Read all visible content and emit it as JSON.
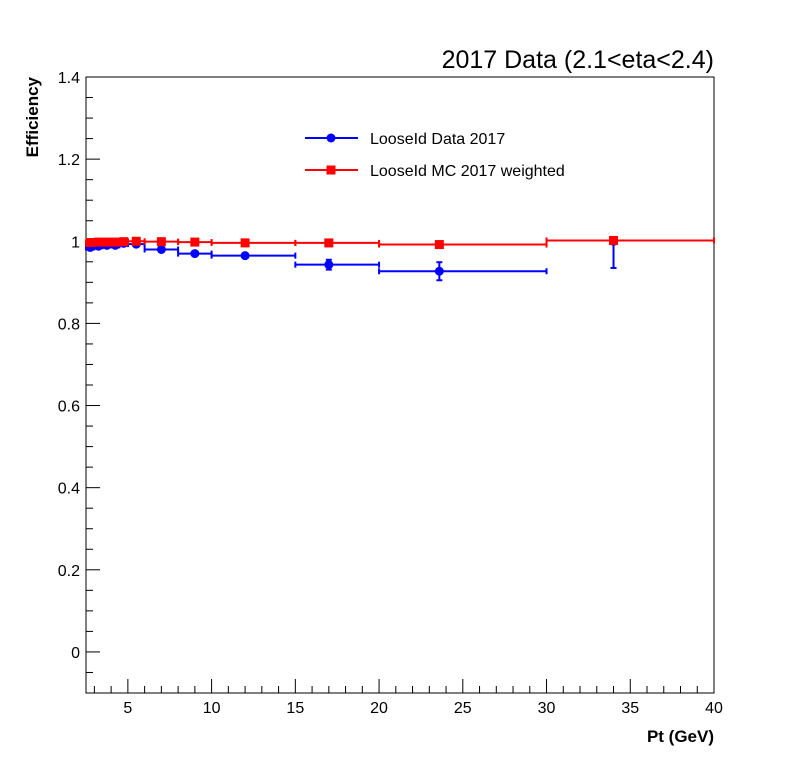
{
  "chart_data": {
    "type": "scatter",
    "title": "2017 Data (2.1<eta<2.4)",
    "xlabel": "Pt (GeV)",
    "ylabel": "Efficiency",
    "xlim": [
      2.5,
      40
    ],
    "ylim": [
      -0.1,
      1.4
    ],
    "xticks": [
      5,
      10,
      15,
      20,
      25,
      30,
      35,
      40
    ],
    "yticks": [
      0,
      0.2,
      0.4,
      0.6,
      0.8,
      1,
      1.2,
      1.4
    ],
    "ytick_labels": [
      "0",
      "0.2",
      "0.4",
      "0.6",
      "0.8",
      "1",
      "1.2",
      "1.4"
    ],
    "grid": false,
    "legend_position": "top-center",
    "series": [
      {
        "name": "LooseId Data 2017",
        "color": "#0000ff",
        "marker": "circle",
        "points": [
          {
            "x": 2.75,
            "y": 0.985,
            "xlo": 2.5,
            "xhi": 3.0,
            "err": 0.004
          },
          {
            "x": 3.25,
            "y": 0.988,
            "xlo": 3.0,
            "xhi": 3.5,
            "err": 0.003
          },
          {
            "x": 3.75,
            "y": 0.99,
            "xlo": 3.5,
            "xhi": 4.0,
            "err": 0.003
          },
          {
            "x": 4.25,
            "y": 0.99,
            "xlo": 4.0,
            "xhi": 4.5,
            "err": 0.003
          },
          {
            "x": 4.75,
            "y": 0.995,
            "xlo": 4.5,
            "xhi": 5.0,
            "err": 0.003
          },
          {
            "x": 5.5,
            "y": 0.993,
            "xlo": 5.0,
            "xhi": 6.0,
            "err": 0.003
          },
          {
            "x": 7.0,
            "y": 0.98,
            "xlo": 6.0,
            "xhi": 8.0,
            "err": 0.004
          },
          {
            "x": 9.0,
            "y": 0.97,
            "xlo": 8.0,
            "xhi": 10.0,
            "err": 0.005
          },
          {
            "x": 12.0,
            "y": 0.965,
            "xlo": 10.0,
            "xhi": 15.0,
            "err": 0.005
          },
          {
            "x": 17.0,
            "y": 0.943,
            "xlo": 15.0,
            "xhi": 20.0,
            "err": 0.012
          },
          {
            "x": 23.6,
            "y": 0.927,
            "xlo": 20.0,
            "xhi": 30.0,
            "err": 0.022
          },
          {
            "x": 34.0,
            "y": 1.0,
            "xlo": 34.0,
            "xhi": 34.0,
            "err": 0.0,
            "err_low": 0.065,
            "err_high": 0.0
          }
        ]
      },
      {
        "name": "LooseId MC 2017 weighted",
        "color": "#ff0000",
        "marker": "square",
        "points": [
          {
            "x": 2.75,
            "y": 0.997,
            "xlo": 2.5,
            "xhi": 3.0,
            "err": 0.001
          },
          {
            "x": 3.25,
            "y": 0.998,
            "xlo": 3.0,
            "xhi": 3.5,
            "err": 0.001
          },
          {
            "x": 3.75,
            "y": 0.998,
            "xlo": 3.5,
            "xhi": 4.0,
            "err": 0.001
          },
          {
            "x": 4.25,
            "y": 0.998,
            "xlo": 4.0,
            "xhi": 4.5,
            "err": 0.001
          },
          {
            "x": 4.75,
            "y": 0.999,
            "xlo": 4.5,
            "xhi": 5.0,
            "err": 0.001
          },
          {
            "x": 5.5,
            "y": 1.0,
            "xlo": 5.0,
            "xhi": 6.0,
            "err": 0.001
          },
          {
            "x": 7.0,
            "y": 0.999,
            "xlo": 6.0,
            "xhi": 8.0,
            "err": 0.001
          },
          {
            "x": 9.0,
            "y": 0.998,
            "xlo": 8.0,
            "xhi": 10.0,
            "err": 0.001
          },
          {
            "x": 12.0,
            "y": 0.996,
            "xlo": 10.0,
            "xhi": 15.0,
            "err": 0.001
          },
          {
            "x": 17.0,
            "y": 0.996,
            "xlo": 15.0,
            "xhi": 20.0,
            "err": 0.001
          },
          {
            "x": 23.6,
            "y": 0.992,
            "xlo": 20.0,
            "xhi": 30.0,
            "err": 0.002
          },
          {
            "x": 34.0,
            "y": 1.002,
            "xlo": 30.0,
            "xhi": 40.0,
            "err": 0.001
          }
        ]
      }
    ]
  }
}
